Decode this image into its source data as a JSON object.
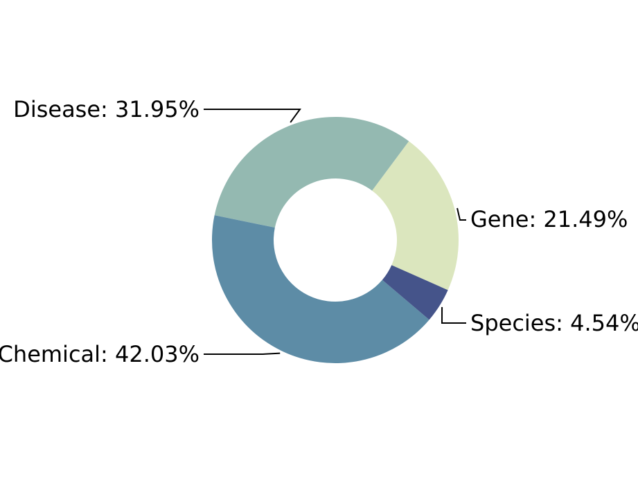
{
  "chart_data": {
    "type": "pie",
    "variant": "donut",
    "categories": [
      "Gene",
      "Disease",
      "Chemical",
      "Species"
    ],
    "values": [
      21.49,
      31.95,
      42.03,
      4.54
    ],
    "labels": [
      "Gene: 21.49%",
      "Disease: 31.95%",
      "Chemical: 42.03%",
      "Species: 4.54%"
    ],
    "colors": [
      "#dbe6be",
      "#94b9b1",
      "#5d8ca6",
      "#45548a"
    ],
    "title": "",
    "legend": "none",
    "start_angle_deg": 336,
    "direction": "counterclockwise"
  }
}
